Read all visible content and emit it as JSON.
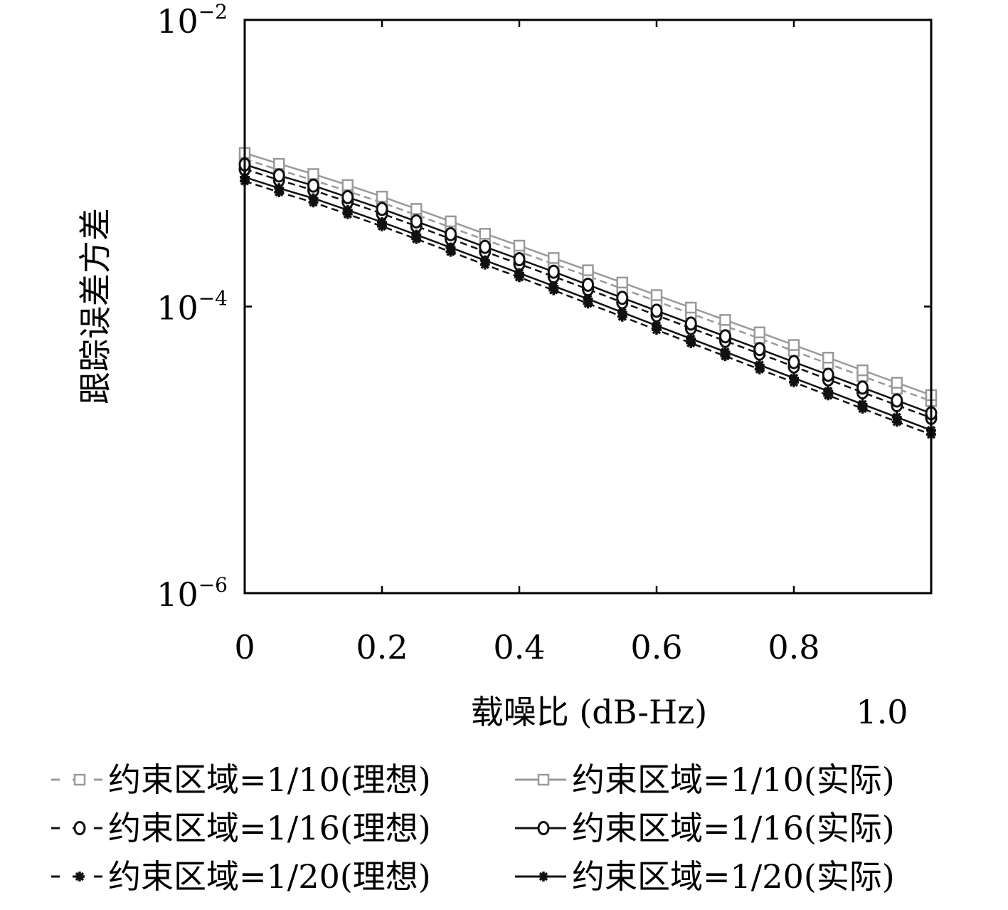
{
  "chart_data": {
    "type": "line",
    "xlabel": "载噪比 (dB-Hz)",
    "ylabel": "跟踪误差方差",
    "x_extra_tick_label": "1.0",
    "xlim": [
      0,
      1.0
    ],
    "ylim": [
      1e-06,
      0.01
    ],
    "y_scale": "log",
    "x_tick_labels": [
      "0",
      "0.2",
      "0.4",
      "0.6",
      "0.8"
    ],
    "x_ticks": [
      0,
      0.2,
      0.4,
      0.6,
      0.8
    ],
    "y_ticks": [
      {
        "value": 0.01,
        "base": "10",
        "exp": "−2"
      },
      {
        "value": 0.0001,
        "base": "10",
        "exp": "−4"
      },
      {
        "value": 1e-06,
        "base": "10",
        "exp": "−6"
      }
    ],
    "x": [
      0,
      0.05,
      0.1,
      0.15,
      0.2,
      0.25,
      0.3,
      0.35,
      0.4,
      0.45,
      0.5,
      0.55,
      0.6,
      0.65,
      0.7,
      0.75,
      0.8,
      0.85,
      0.9,
      0.95,
      1.0
    ],
    "series": [
      {
        "name": "约束区域=1/10(理想)",
        "marker": "square",
        "line": "dashed",
        "color": "#9a9a9a",
        "values": [
          0.00107,
          0.000898,
          0.000762,
          0.000638,
          0.000531,
          0.000436,
          0.000357,
          0.000292,
          0.000241,
          0.000198,
          0.000163,
          0.000133,
          0.000109,
          8.92e-05,
          7.31e-05,
          5.99e-05,
          4.89e-05,
          3.99e-05,
          3.26e-05,
          2.67e-05,
          2.19e-05
        ]
      },
      {
        "name": "约束区域=1/10(实际)",
        "marker": "square",
        "line": "solid",
        "color": "#9a9a9a",
        "values": [
          0.00118,
          0.00099,
          0.00084,
          0.000704,
          0.000585,
          0.00048,
          0.000393,
          0.000322,
          0.000266,
          0.000218,
          0.000179,
          0.000147,
          0.00012,
          9.83e-05,
          8.06e-05,
          6.6e-05,
          5.39e-05,
          4.4e-05,
          3.59e-05,
          2.94e-05,
          2.41e-05
        ]
      },
      {
        "name": "约束区域=1/16(理想)",
        "marker": "circle",
        "line": "dashed",
        "color": "#111111",
        "values": [
          0.00091,
          0.000763,
          0.000648,
          0.000538,
          0.000445,
          0.000364,
          0.000297,
          0.000242,
          0.000198,
          0.000162,
          0.000132,
          0.000107,
          8.69e-05,
          7.07e-05,
          5.76e-05,
          4.69e-05,
          3.81e-05,
          3.1e-05,
          2.52e-05,
          2.05e-05,
          1.67e-05
        ]
      },
      {
        "name": "约束区域=1/16(实际)",
        "marker": "circle",
        "line": "solid",
        "color": "#111111",
        "values": [
          0.00098,
          0.000822,
          0.000698,
          0.00058,
          0.00048,
          0.000393,
          0.00032,
          0.000261,
          0.000214,
          0.000175,
          0.000142,
          0.000115,
          9.35e-05,
          7.61e-05,
          6.2e-05,
          5.05e-05,
          4.1e-05,
          3.34e-05,
          2.72e-05,
          2.21e-05,
          1.8e-05
        ]
      },
      {
        "name": "约束区域=1/20(理想)",
        "marker": "star",
        "line": "dashed",
        "color": "#111111",
        "values": [
          0.00075,
          0.000628,
          0.000533,
          0.000441,
          0.000363,
          0.000296,
          0.000241,
          0.000196,
          0.00016,
          0.00013,
          0.000105,
          8.5e-05,
          6.87e-05,
          5.56e-05,
          4.51e-05,
          3.65e-05,
          2.96e-05,
          2.4e-05,
          1.94e-05,
          1.57e-05,
          1.28e-05
        ]
      },
      {
        "name": "约束区域=1/20(实际)",
        "marker": "star",
        "line": "solid",
        "color": "#111111",
        "values": [
          0.0008,
          0.00067,
          0.000569,
          0.000471,
          0.000388,
          0.000317,
          0.000258,
          0.00021,
          0.000171,
          0.000139,
          0.000113,
          9.1e-05,
          7.36e-05,
          5.96e-05,
          4.83e-05,
          3.91e-05,
          3.17e-05,
          2.57e-05,
          2.08e-05,
          1.69e-05,
          1.37e-05
        ]
      }
    ]
  }
}
